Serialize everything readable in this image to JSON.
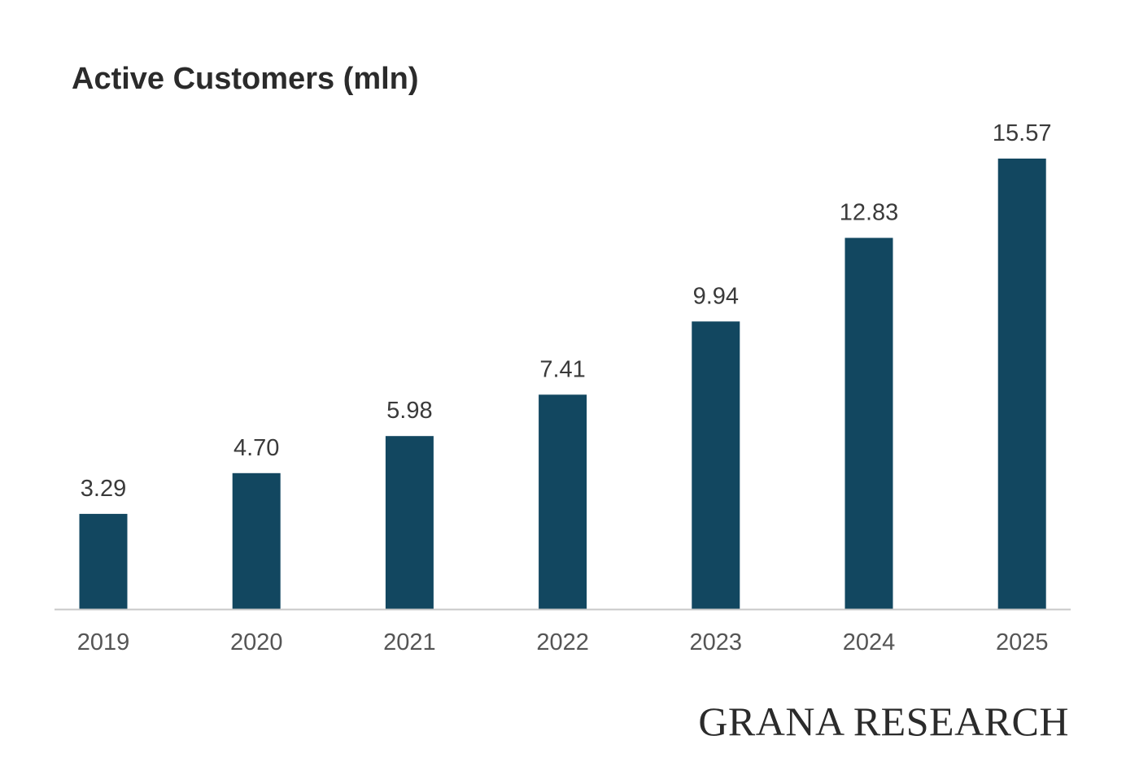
{
  "chart_data": {
    "type": "bar",
    "title": "Active Customers (mln)",
    "categories": [
      "2019",
      "2020",
      "2021",
      "2022",
      "2023",
      "2024",
      "2025"
    ],
    "values": [
      3.29,
      4.7,
      5.98,
      7.41,
      9.94,
      12.83,
      15.57
    ],
    "value_labels": [
      "3.29",
      "4.70",
      "5.98",
      "7.41",
      "9.94",
      "12.83",
      "15.57"
    ],
    "xlabel": "",
    "ylabel": "",
    "ylim": [
      0,
      15.57
    ],
    "grid": false,
    "legend": "none",
    "colors": {
      "bar": "#124760",
      "axis": "#c8c8c8",
      "tick_text": "#555555",
      "label_text": "#3a3a3a"
    }
  },
  "footer": {
    "brand": "GRANA RESEARCH"
  }
}
